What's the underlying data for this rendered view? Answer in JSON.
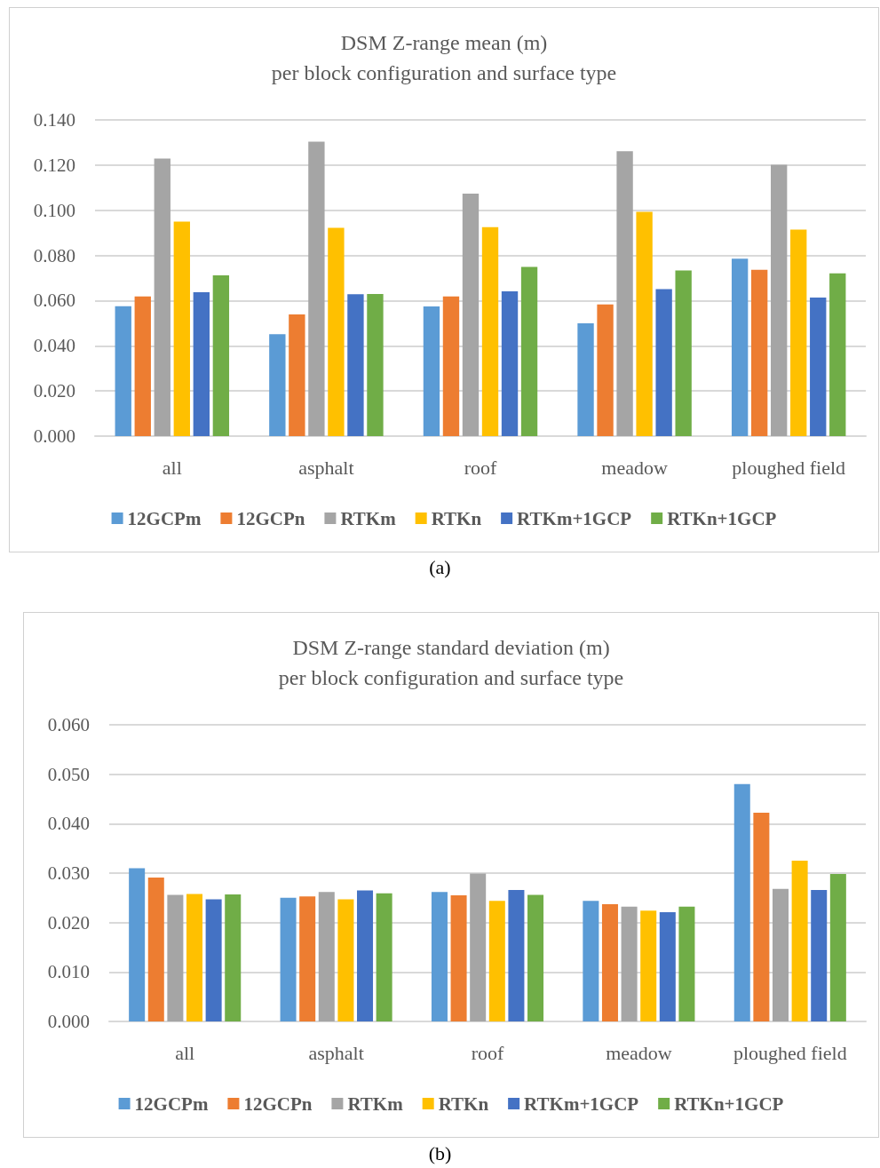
{
  "chart_data": [
    {
      "type": "bar",
      "title": "DSM Z-range mean (m)",
      "subtitle": "per block configuration and surface type",
      "categories": [
        "all",
        "asphalt",
        "roof",
        "meadow",
        "ploughed field"
      ],
      "series": [
        {
          "name": "12GCPm",
          "color": "#5b9bd5",
          "values": [
            0.0575,
            0.0451,
            0.0574,
            0.0499,
            0.0786
          ]
        },
        {
          "name": "12GCPn",
          "color": "#ed7d31",
          "values": [
            0.0618,
            0.0539,
            0.0618,
            0.0583,
            0.0736
          ]
        },
        {
          "name": "RTKm",
          "color": "#a5a5a5",
          "values": [
            0.1229,
            0.1304,
            0.1074,
            0.1261,
            0.1201
          ]
        },
        {
          "name": "RTKn",
          "color": "#ffc000",
          "values": [
            0.095,
            0.0922,
            0.0925,
            0.0993,
            0.0914
          ]
        },
        {
          "name": "RTKm+1GCP",
          "color": "#4472c4",
          "values": [
            0.0637,
            0.0628,
            0.0641,
            0.0651,
            0.0613
          ]
        },
        {
          "name": "RTKn+1GCP",
          "color": "#70ad47",
          "values": [
            0.0712,
            0.0629,
            0.0749,
            0.0733,
            0.0721
          ]
        }
      ],
      "ylim": [
        0,
        0.14
      ],
      "yticks": [
        {
          "value": 0,
          "label": "0.000"
        },
        {
          "value": 0.02,
          "label": "0.020"
        },
        {
          "value": 0.04,
          "label": "0.040"
        },
        {
          "value": 0.06,
          "label": "0.060"
        },
        {
          "value": 0.08,
          "label": "0.080"
        },
        {
          "value": 0.1,
          "label": "0.100"
        },
        {
          "value": 0.12,
          "label": "0.120"
        },
        {
          "value": 0.14,
          "label": "0.140"
        }
      ],
      "grid": "y",
      "legend": "bottom",
      "annotations": [
        "(a)"
      ]
    },
    {
      "type": "bar",
      "title": "DSM Z-range standard deviation (m)",
      "subtitle": "per block configuration and surface type",
      "categories": [
        "all",
        "asphalt",
        "roof",
        "meadow",
        "ploughed field"
      ],
      "series": [
        {
          "name": "12GCPm",
          "color": "#5b9bd5",
          "values": [
            0.031,
            0.025,
            0.0262,
            0.0244,
            0.048
          ]
        },
        {
          "name": "12GCPn",
          "color": "#ed7d31",
          "values": [
            0.0291,
            0.0253,
            0.0255,
            0.0237,
            0.0422
          ]
        },
        {
          "name": "RTKm",
          "color": "#a5a5a5",
          "values": [
            0.0256,
            0.0262,
            0.0299,
            0.0232,
            0.0268
          ]
        },
        {
          "name": "RTKn",
          "color": "#ffc000",
          "values": [
            0.0258,
            0.0247,
            0.0244,
            0.0224,
            0.0325
          ]
        },
        {
          "name": "RTKm+1GCP",
          "color": "#4472c4",
          "values": [
            0.0247,
            0.0265,
            0.0266,
            0.0221,
            0.0266
          ]
        },
        {
          "name": "RTKn+1GCP",
          "color": "#70ad47",
          "values": [
            0.0257,
            0.0259,
            0.0256,
            0.0232,
            0.0298
          ]
        }
      ],
      "ylim": [
        0,
        0.06
      ],
      "yticks": [
        {
          "value": 0,
          "label": "0.000"
        },
        {
          "value": 0.01,
          "label": "0.010"
        },
        {
          "value": 0.02,
          "label": "0.020"
        },
        {
          "value": 0.03,
          "label": "0.030"
        },
        {
          "value": 0.04,
          "label": "0.040"
        },
        {
          "value": 0.05,
          "label": "0.050"
        },
        {
          "value": 0.06,
          "label": "0.060"
        }
      ],
      "grid": "y",
      "legend": "bottom",
      "annotations": [
        "(b)"
      ]
    }
  ]
}
